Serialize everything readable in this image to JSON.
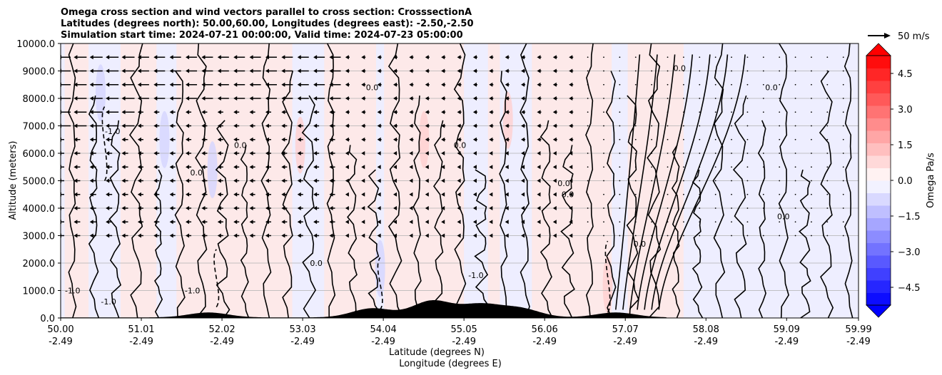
{
  "chart_data": {
    "type": "heatmap",
    "title_lines": [
      "Omega cross section and wind vectors parallel to cross section: CrosssectionA",
      "Latitudes (degrees north): 50.00,60.00, Longitudes (degrees east): -2.50,-2.50",
      "Simulation start time: 2024-07-21 00:00:00, Valid time: 2024-07-23 05:00:00"
    ],
    "xlabel_1": "Latitude (degrees N)",
    "xlabel_2": "Longitude (degrees E)",
    "ylabel": "Altitude (meters)",
    "x_ticks": [
      {
        "lat": "50.00",
        "lon": "-2.49"
      },
      {
        "lat": "51.01",
        "lon": "-2.49"
      },
      {
        "lat": "52.02",
        "lon": "-2.49"
      },
      {
        "lat": "53.03",
        "lon": "-2.49"
      },
      {
        "lat": "54.04",
        "lon": "-2.49"
      },
      {
        "lat": "55.05",
        "lon": "-2.49"
      },
      {
        "lat": "56.06",
        "lon": "-2.49"
      },
      {
        "lat": "57.07",
        "lon": "-2.49"
      },
      {
        "lat": "58.08",
        "lon": "-2.49"
      },
      {
        "lat": "59.09",
        "lon": "-2.49"
      },
      {
        "lat": "59.99",
        "lon": "-2.49"
      }
    ],
    "y_ticks": [
      "0.0",
      "1000.0",
      "2000.0",
      "3000.0",
      "4000.0",
      "5000.0",
      "6000.0",
      "7000.0",
      "8000.0",
      "9000.0",
      "10000.0"
    ],
    "ylim": [
      0,
      10000
    ],
    "xlim": [
      50.0,
      59.99
    ],
    "grid": "horizontal",
    "colorbar": {
      "label": "Omega Pa/s",
      "ticks": [
        "4.5",
        "3.0",
        "1.5",
        "0.0",
        "−1.5",
        "−3.0",
        "−4.5"
      ],
      "range": [
        -5.25,
        5.25
      ],
      "colormap": "bwr",
      "extend": "both"
    },
    "quiver_key": {
      "label": "50 m/s",
      "speed": 50
    },
    "wind_rows_m": [
      9500,
      9000,
      8500,
      8000,
      7500,
      7000,
      6500,
      6000,
      5500,
      5000,
      4500,
      4000,
      3500,
      3000
    ],
    "contour_labels": [
      {
        "text": "0.0",
        "lat": 56.3,
        "alt": 4800
      },
      {
        "text": "0.0",
        "lat": 56.35,
        "alt": 4400
      },
      {
        "text": "-1.0",
        "lat": 55.2,
        "alt": 1450
      },
      {
        "text": "-1.0",
        "lat": 51.65,
        "alt": 900
      },
      {
        "text": "-1.0",
        "lat": 50.15,
        "alt": 900
      },
      {
        "text": "-1.0",
        "lat": 50.6,
        "alt": 500
      },
      {
        "text": "0.0",
        "lat": 53.2,
        "alt": 1900
      },
      {
        "text": "0.0",
        "lat": 51.7,
        "alt": 5200
      },
      {
        "text": "0.0",
        "lat": 52.25,
        "alt": 6200
      },
      {
        "text": "0.0",
        "lat": 53.9,
        "alt": 8300
      },
      {
        "text": "0.0",
        "lat": 55.0,
        "alt": 6200
      },
      {
        "text": "0.0",
        "lat": 57.75,
        "alt": 9000
      },
      {
        "text": "0.0",
        "lat": 58.9,
        "alt": 8300
      },
      {
        "text": "0.0",
        "lat": 57.25,
        "alt": 2600
      },
      {
        "text": "0.0",
        "lat": 59.05,
        "alt": 3600
      },
      {
        "text": "-1.0",
        "lat": 50.65,
        "alt": 6700
      }
    ],
    "terrain_peaks": [
      {
        "lat": 51.85,
        "height": 180
      },
      {
        "lat": 53.9,
        "height": 330
      },
      {
        "lat": 54.65,
        "height": 600
      },
      {
        "lat": 55.25,
        "height": 450
      },
      {
        "lat": 55.75,
        "height": 320
      },
      {
        "lat": 56.95,
        "height": 180
      }
    ]
  },
  "colors": {
    "positive_light": "#fde9e9",
    "negative_light": "#eeeeff",
    "contour": "#000000",
    "terrain": "#000000",
    "grid": "#b0b0b0"
  }
}
